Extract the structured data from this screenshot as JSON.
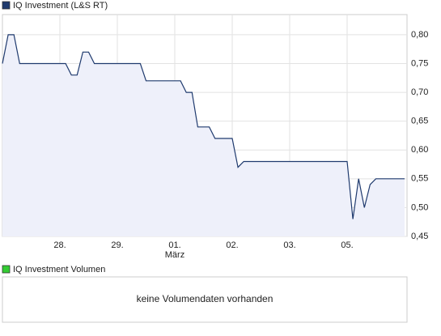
{
  "chart_data": {
    "type": "line",
    "series": [
      {
        "name": "IQ Investment (L&S RT)",
        "color": "#1f3a6e",
        "fill": "#eef0fa",
        "values": [
          0.75,
          0.8,
          0.8,
          0.75,
          0.75,
          0.75,
          0.75,
          0.75,
          0.75,
          0.75,
          0.75,
          0.75,
          0.73,
          0.73,
          0.77,
          0.77,
          0.75,
          0.75,
          0.75,
          0.75,
          0.75,
          0.75,
          0.75,
          0.75,
          0.75,
          0.72,
          0.72,
          0.72,
          0.72,
          0.72,
          0.72,
          0.72,
          0.7,
          0.7,
          0.64,
          0.64,
          0.64,
          0.62,
          0.62,
          0.62,
          0.62,
          0.57,
          0.58,
          0.58,
          0.58,
          0.58,
          0.58,
          0.58,
          0.58,
          0.58,
          0.58,
          0.58,
          0.58,
          0.58,
          0.58,
          0.58,
          0.58,
          0.58,
          0.58,
          0.58,
          0.58,
          0.48,
          0.55,
          0.5,
          0.54,
          0.55,
          0.55,
          0.55,
          0.55,
          0.55,
          0.55
        ]
      }
    ],
    "categories": [
      null,
      null,
      null,
      null,
      null,
      null,
      null,
      null,
      null,
      null,
      "28.",
      null,
      null,
      null,
      null,
      null,
      null,
      null,
      null,
      null,
      "29.",
      null,
      null,
      null,
      null,
      null,
      null,
      null,
      null,
      null,
      "01.",
      null,
      null,
      null,
      null,
      null,
      null,
      null,
      null,
      null,
      "02.",
      null,
      null,
      null,
      null,
      null,
      null,
      null,
      null,
      null,
      "03.",
      null,
      null,
      null,
      null,
      null,
      null,
      null,
      null,
      null,
      "05.",
      null,
      null,
      null,
      null,
      null,
      null,
      null,
      null,
      null,
      null
    ],
    "x_sublabel": {
      "under": "01.",
      "text": "März"
    },
    "ylim": [
      0.45,
      0.835
    ],
    "yticks": [
      {
        "value": 0.45,
        "label": "0,45"
      },
      {
        "value": 0.5,
        "label": "0,50"
      },
      {
        "value": 0.55,
        "label": "0,55"
      },
      {
        "value": 0.6,
        "label": "0,60"
      },
      {
        "value": 0.65,
        "label": "0,65"
      },
      {
        "value": 0.7,
        "label": "0,70"
      },
      {
        "value": 0.75,
        "label": "0,75"
      },
      {
        "value": 0.8,
        "label": "0,80"
      }
    ],
    "grid": true
  },
  "volume_panel": {
    "legend": "IQ Investment Volumen",
    "color": "#33cc33",
    "message": "keine Volumendaten vorhanden"
  }
}
